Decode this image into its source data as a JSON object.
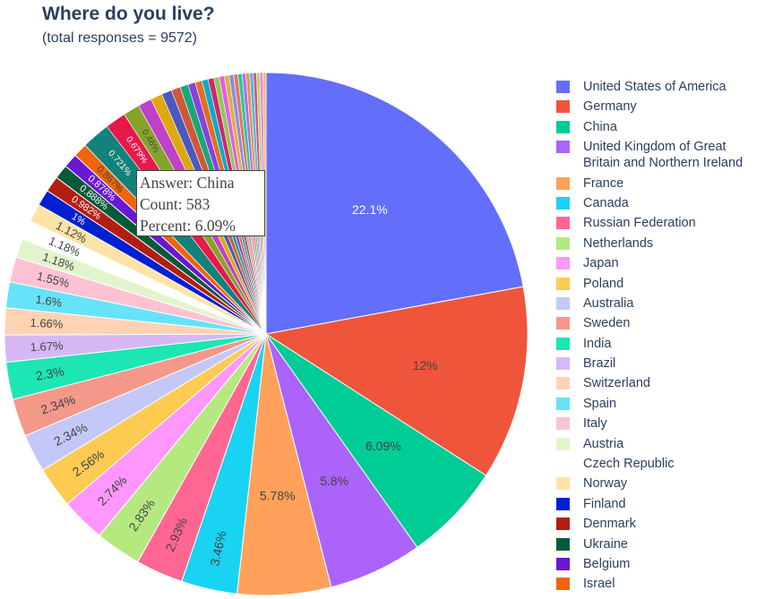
{
  "header": {
    "title": "Where do you live?",
    "subtitle": "(total responses = 9572)"
  },
  "tooltip": {
    "answer": "Answer: China",
    "count": "Count: 583",
    "percent": "Percent: 6.09%"
  },
  "chart_data": {
    "type": "pie",
    "title": "Where do you live?",
    "subtitle": "(total responses = 9572)",
    "total": 9572,
    "direction": "clockwise",
    "start": "top",
    "slices": [
      {
        "label": "United States of America",
        "percent": 22.1,
        "text": "22.1%",
        "color": "#636efa"
      },
      {
        "label": "Germany",
        "percent": 12.0,
        "text": "12%",
        "color": "#ef553b"
      },
      {
        "label": "China",
        "percent": 6.09,
        "text": "6.09%",
        "color": "#00cc96",
        "count": 583
      },
      {
        "label": "United Kingdom of Great Britain and Northern Ireland",
        "percent": 5.8,
        "text": "5.8%",
        "color": "#ab63fa"
      },
      {
        "label": "France",
        "percent": 5.78,
        "text": "5.78%",
        "color": "#ffa15a"
      },
      {
        "label": "Canada",
        "percent": 3.46,
        "text": "3.46%",
        "color": "#19d3f3"
      },
      {
        "label": "Russian Federation",
        "percent": 2.93,
        "text": "2.93%",
        "color": "#ff6692"
      },
      {
        "label": "Netherlands",
        "percent": 2.83,
        "text": "2.83%",
        "color": "#b6e880"
      },
      {
        "label": "Japan",
        "percent": 2.74,
        "text": "2.74%",
        "color": "#ff97ff"
      },
      {
        "label": "Poland",
        "percent": 2.56,
        "text": "2.56%",
        "color": "#fecb52"
      },
      {
        "label": "Australia",
        "percent": 2.34,
        "text": "2.34%",
        "color": "#c4c8f9"
      },
      {
        "label": "Sweden",
        "percent": 2.34,
        "text": "2.34%",
        "color": "#f4988a"
      },
      {
        "label": "India",
        "percent": 2.3,
        "text": "2.3%",
        "color": "#1ce6b4"
      },
      {
        "label": "Brazil",
        "percent": 1.67,
        "text": "1.67%",
        "color": "#d6b8f6"
      },
      {
        "label": "Switzerland",
        "percent": 1.66,
        "text": "1.66%",
        "color": "#fdd3b4"
      },
      {
        "label": "Spain",
        "percent": 1.6,
        "text": "1.6%",
        "color": "#66e3f8"
      },
      {
        "label": "Italy",
        "percent": 1.55,
        "text": "1.55%",
        "color": "#fdc2d3"
      },
      {
        "label": "Austria",
        "percent": 1.18,
        "text": "1.18%",
        "color": "#e2f4cc"
      },
      {
        "label": "Czech Republic",
        "percent": 1.18,
        "text": "1.18%",
        "color": "#ffffff"
      },
      {
        "label": "Norway",
        "percent": 1.12,
        "text": "1.12%",
        "color": "#fde3a7"
      },
      {
        "label": "Finland",
        "percent": 1.0,
        "text": "1%",
        "color": "#0020d0"
      },
      {
        "label": "Denmark",
        "percent": 0.982,
        "text": "0.982%",
        "color": "#b21f12"
      },
      {
        "label": "Ukraine",
        "percent": 0.888,
        "text": "0.888%",
        "color": "#055a3a"
      },
      {
        "label": "Belgium",
        "percent": 0.878,
        "text": "0.878%",
        "color": "#6a16d4"
      },
      {
        "label": "Israel",
        "percent": 0.867,
        "text": "0.867%",
        "color": "#f0640a"
      }
    ],
    "other_slices": {
      "text": [
        "0.721%",
        "0.679%",
        "0.46%"
      ],
      "colors": [
        "#12827a",
        "#e8184a",
        "#84a52a",
        "#c040c8",
        "#e0a810",
        "#4a58c0",
        "#d05838",
        "#18a878",
        "#8840e0",
        "#e07020",
        "#10a8c8",
        "#d02868",
        "#90c858",
        "#e060e0",
        "#e0b040",
        "#8890e0",
        "#e07860",
        "#28c898",
        "#b070e8",
        "#f09050",
        "#40c0e0",
        "#e05080",
        "#a8d870",
        "#f080f0",
        "#f0c060"
      ]
    }
  }
}
